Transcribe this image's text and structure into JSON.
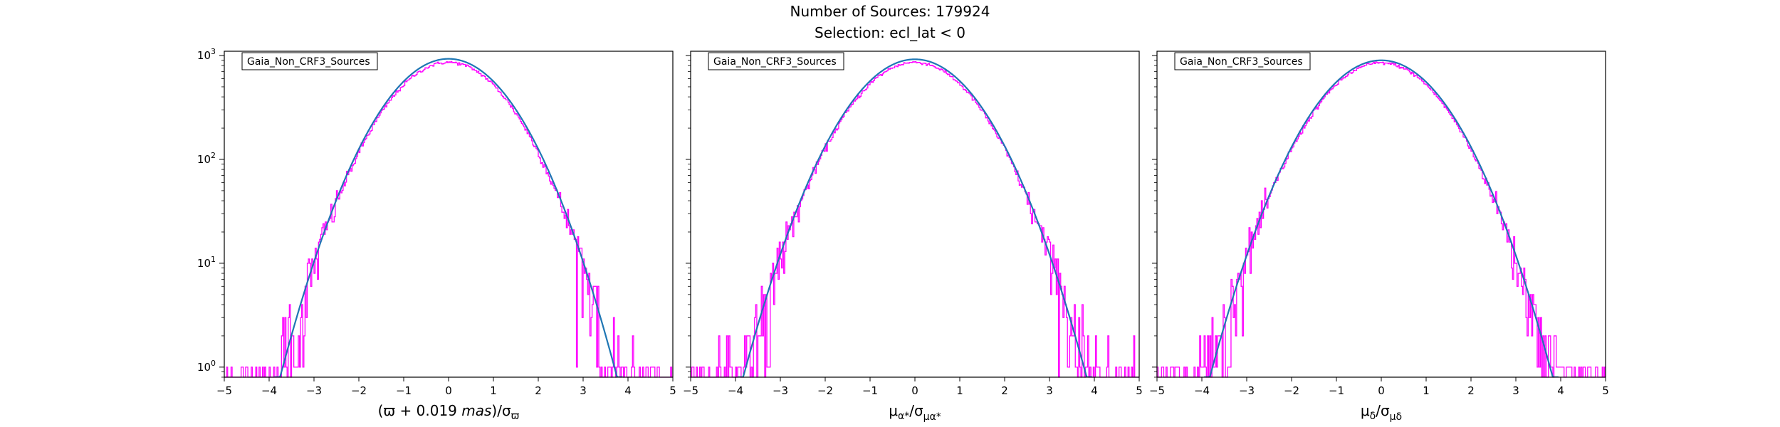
{
  "figure": {
    "title": "Number of Sources: 179924",
    "subtitle": "Selection: ecl_lat < 0"
  },
  "colors": {
    "histogram": "#ff00ff",
    "gaussian_curve": "#1f77b4",
    "axes": "#000000",
    "background": "#ffffff"
  },
  "chart_data": [
    {
      "type": "histogram+line",
      "legend": "Gaia_Non_CRF3_Sources",
      "legend_position": "upper-left",
      "xlabel": "(ϖ + 0.019 mas)/σϖ",
      "ylabel": "",
      "xlim": [
        -5,
        5
      ],
      "ylim": [
        0.8,
        1100
      ],
      "yscale": "log",
      "xticks": [
        -5,
        -4,
        -3,
        -2,
        -1,
        0,
        1,
        2,
        3,
        4,
        5
      ],
      "yticks": [
        {
          "value": 1,
          "label": "10^0"
        },
        {
          "value": 10,
          "label": "10^1"
        },
        {
          "value": 100,
          "label": "10^2"
        },
        {
          "value": 1000,
          "label": "10^3"
        }
      ],
      "curve": {
        "model": "gaussian",
        "peak": 930,
        "mean": 0,
        "sigma": 1
      },
      "histogram": {
        "peak": 860,
        "range": [
          -5,
          5
        ],
        "bins": 400
      }
    },
    {
      "type": "histogram+line",
      "legend": "Gaia_Non_CRF3_Sources",
      "legend_position": "upper-left",
      "xlabel": "μα*/σμα*",
      "ylabel": "",
      "xlim": [
        -5,
        5
      ],
      "ylim": [
        0.8,
        1100
      ],
      "yscale": "log",
      "xticks": [
        -5,
        -4,
        -3,
        -2,
        -1,
        0,
        1,
        2,
        3,
        4,
        5
      ],
      "yticks": [
        {
          "value": 1,
          "label": ""
        },
        {
          "value": 10,
          "label": ""
        },
        {
          "value": 100,
          "label": ""
        },
        {
          "value": 1000,
          "label": ""
        }
      ],
      "curve": {
        "model": "gaussian",
        "peak": 920,
        "mean": 0,
        "sigma": 1.02
      },
      "histogram": {
        "peak": 860,
        "range": [
          -5,
          5
        ],
        "bins": 400
      }
    },
    {
      "type": "histogram+line",
      "legend": "Gaia_Non_CRF3_Sources",
      "legend_position": "upper-left",
      "xlabel": "μδ/σμδ",
      "ylabel": "",
      "xlim": [
        -5,
        5
      ],
      "ylim": [
        0.8,
        1100
      ],
      "yscale": "log",
      "xticks": [
        -5,
        -4,
        -3,
        -2,
        -1,
        0,
        1,
        2,
        3,
        4,
        5
      ],
      "yticks": [
        {
          "value": 1,
          "label": ""
        },
        {
          "value": 10,
          "label": ""
        },
        {
          "value": 100,
          "label": ""
        },
        {
          "value": 1000,
          "label": ""
        }
      ],
      "curve": {
        "model": "gaussian",
        "peak": 900,
        "mean": 0,
        "sigma": 1.02
      },
      "histogram": {
        "peak": 850,
        "range": [
          -5,
          5
        ],
        "bins": 400
      }
    }
  ]
}
